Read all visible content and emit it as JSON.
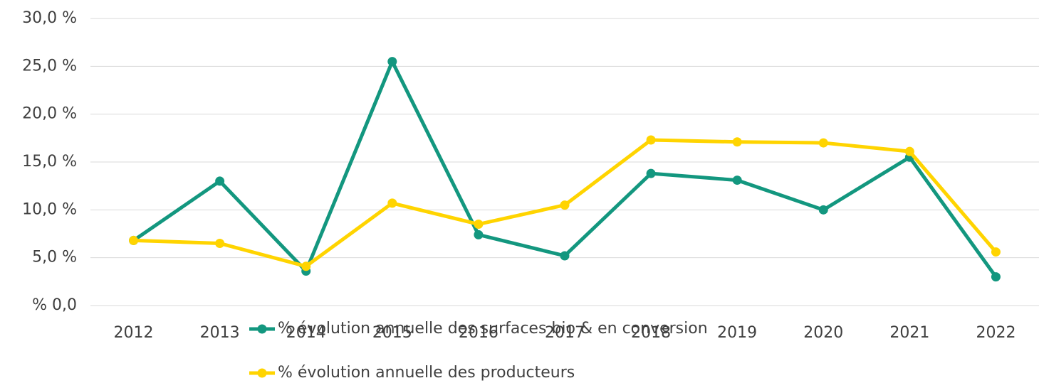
{
  "chart_data": {
    "type": "line",
    "categories": [
      "2012",
      "2013",
      "2014",
      "2015",
      "2016",
      "2017",
      "2018",
      "2019",
      "2020",
      "2021",
      "2022"
    ],
    "series": [
      {
        "name": "% évolution annuelle des surfaces bio & en conversion",
        "color": "#13977f",
        "values": [
          6.8,
          13.0,
          3.6,
          25.5,
          7.4,
          5.2,
          13.8,
          13.1,
          10.0,
          15.5,
          3.0
        ]
      },
      {
        "name": "% évolution annuelle des producteurs",
        "color": "#ffd400",
        "values": [
          6.8,
          6.5,
          4.1,
          10.7,
          8.5,
          10.5,
          17.3,
          17.1,
          17.0,
          16.1,
          5.6
        ]
      }
    ],
    "ylim": [
      0,
      30
    ],
    "yticks": [
      {
        "value": 0,
        "label": "% 0,0"
      },
      {
        "value": 5,
        "label": "5,0 %"
      },
      {
        "value": 10,
        "label": "10,0 %"
      },
      {
        "value": 15,
        "label": "15,0 %"
      },
      {
        "value": 20,
        "label": "20,0 %"
      },
      {
        "value": 25,
        "label": "25,0 %"
      },
      {
        "value": 30,
        "label": "30,0 %"
      }
    ],
    "grid": true,
    "legend": "bottom"
  }
}
